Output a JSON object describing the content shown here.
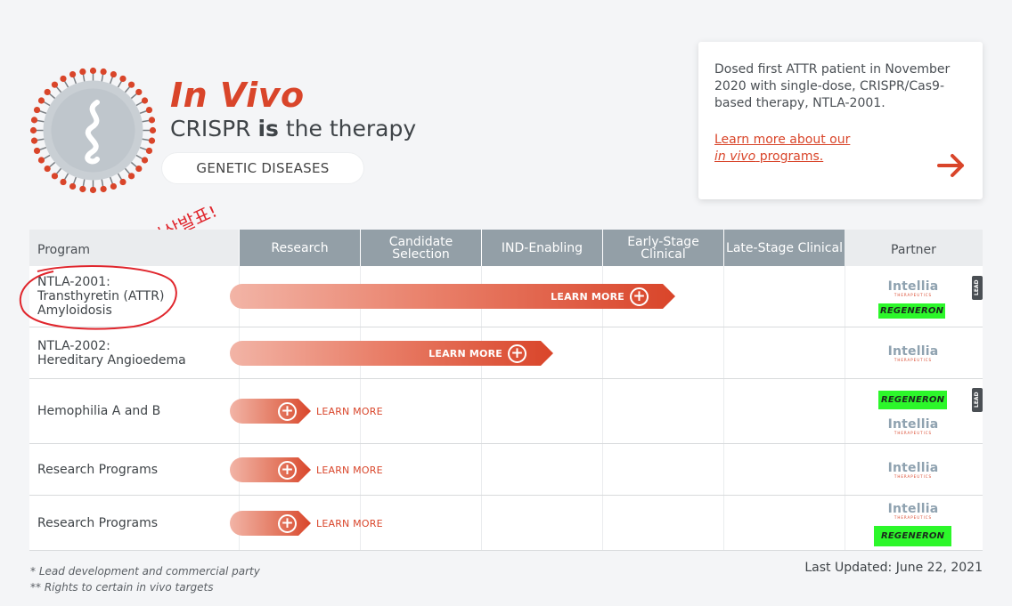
{
  "header": {
    "title": "In Vivo",
    "subtitle_pre": "CRISPR",
    "subtitle_bold": "is",
    "subtitle_post": "the therapy",
    "category_pill": "GENETIC DISEASES"
  },
  "info_card": {
    "text": "Dosed first ATTR patient in November 2020 with single-dose, CRISPR/Cas9-based therapy, NTLA-2001.",
    "link_pre": "Learn more about our",
    "link_italic": "in vivo",
    "link_post": "programs."
  },
  "handwritten_note": "최근 임상발표!",
  "table": {
    "header_program": "Program",
    "phases": [
      "Research",
      "Candidate Selection",
      "IND-Enabling",
      "Early-Stage Clinical",
      "Late-Stage Clinical"
    ],
    "header_partner": "Partner",
    "rows": [
      {
        "program_line1": "NTLA-2001:",
        "program_line2": "Transthyretin (ATTR)",
        "program_line3": "Amyloidosis",
        "action": "LEARN MORE"
      },
      {
        "program_line1": "NTLA-2002:",
        "program_line2": "Hereditary Angioedema",
        "action": "LEARN MORE"
      },
      {
        "program_line1": "Hemophilia A and B",
        "action": "LEARN MORE"
      },
      {
        "program_line1": "Research Programs",
        "action": "LEARN MORE"
      },
      {
        "program_line1": "Research Programs",
        "action": "LEARN MORE"
      }
    ]
  },
  "partners": {
    "intellia": "Intellia",
    "intellia_sub": "THERAPEUTICS",
    "regeneron": "REGENERON",
    "lead_badge": "LEAD"
  },
  "footer": {
    "note1": "* Lead development and commercial party",
    "note2": "** Rights to certain in vivo targets",
    "updated": "Last Updated: June 22, 2021"
  },
  "colors": {
    "accent": "#d9452a",
    "header_gray": "#939fa7",
    "highlight": "#2cf72a",
    "annotation": "#e0262d"
  }
}
